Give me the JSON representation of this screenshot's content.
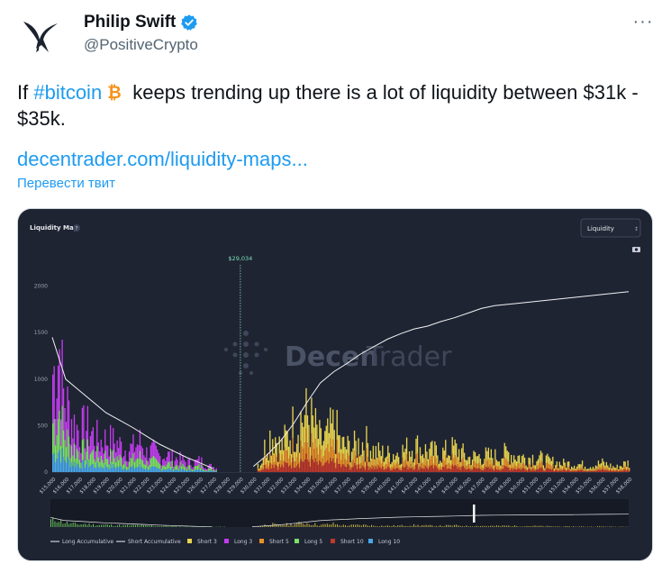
{
  "author": {
    "display_name": "Philip Swift",
    "handle": "@PositiveCrypto",
    "verified_color": "#1d9bf0",
    "avatar_icon": "swallow-bird-icon"
  },
  "more_icon": "ellipsis-icon",
  "more_label": "···",
  "tweet": {
    "text_prefix": "If ",
    "hashtag": "#bitcoin",
    "emoji_icon": "bitcoin-emoji-icon",
    "text_suffix": " keeps trending up there is a lot of liquidity between $31k - $35k.",
    "link_text": "decentrader.com/liquidity-maps...",
    "translate_label": "Перевести твит"
  },
  "colors": {
    "link": "#1d9bf0",
    "chart_bg": "#1f2433",
    "short3": "#e8d44d",
    "long3": "#c43cf0",
    "short5": "#e8902a",
    "long5": "#7ee06a",
    "short10": "#c0392b",
    "long10": "#4aa8e8"
  },
  "chart_panel": {
    "title": "Liquidity Map",
    "help_label": "?",
    "dropdown_value": "Liquidity",
    "camera_icon": "camera-icon",
    "current_price_label": "$29,034",
    "watermark_text_a": "Decen",
    "watermark_text_b": "Trader"
  },
  "chart_data": {
    "type": "bar",
    "title": "Liquidity Map",
    "ylim": [
      0,
      2200
    ],
    "yticks": [
      0,
      500,
      1000,
      1500,
      2000
    ],
    "xticks": [
      "$15,000",
      "$16,000",
      "$17,000",
      "$18,000",
      "$19,000",
      "$20,000",
      "$21,000",
      "$22,000",
      "$23,000",
      "$24,000",
      "$25,000",
      "$26,000",
      "$27,000",
      "$28,000",
      "$29,000",
      "$30,000",
      "$31,000",
      "$32,000",
      "$33,000",
      "$34,000",
      "$35,000",
      "$36,000",
      "$37,000",
      "$38,000",
      "$39,000",
      "$40,000",
      "$41,000",
      "$42,000",
      "$43,000",
      "$44,000",
      "$45,000",
      "$46,000",
      "$47,000",
      "$48,000",
      "$49,000",
      "$50,000",
      "$51,000",
      "$52,000",
      "$53,000",
      "$54,000",
      "$55,000",
      "$56,000",
      "$57,000",
      "$58,000"
    ],
    "xrange": [
      15000,
      58000
    ],
    "current_price": 29034,
    "legend": [
      "Long Accumulative",
      "Short Accumulative",
      "Short 3",
      "Long 3",
      "Short 5",
      "Long 5",
      "Short 10",
      "Long 10"
    ],
    "legend_placement": "bottom",
    "series": [
      {
        "name": "Long 3 (peak envelope)",
        "x": [
          15200,
          15500,
          15800,
          16100,
          16500,
          17000,
          17500,
          18000,
          18500,
          19000,
          19500,
          20000,
          20500,
          21000,
          21500,
          22000,
          22500,
          23000,
          23500,
          24000,
          24500,
          25000,
          25500,
          26000,
          26500,
          27000
        ],
        "values": [
          1700,
          2100,
          1300,
          1100,
          850,
          700,
          760,
          640,
          520,
          560,
          520,
          460,
          380,
          420,
          520,
          330,
          360,
          260,
          300,
          240,
          220,
          170,
          160,
          200,
          110,
          90
        ]
      },
      {
        "name": "Short 3 (peak envelope)",
        "x": [
          30500,
          31000,
          31500,
          32000,
          32500,
          33000,
          33500,
          34000,
          34500,
          35000,
          35500,
          36000,
          36500,
          37000,
          37500,
          38000,
          38500,
          39000,
          40000,
          41000,
          42000,
          43000,
          44000,
          45000,
          46000,
          47000,
          48000,
          49000,
          50000,
          51000,
          52000,
          53000,
          54000,
          55000,
          56000,
          57000,
          57800
        ],
        "values": [
          150,
          600,
          700,
          420,
          620,
          820,
          960,
          980,
          800,
          520,
          620,
          820,
          480,
          430,
          450,
          520,
          510,
          360,
          310,
          360,
          470,
          360,
          330,
          420,
          250,
          290,
          270,
          340,
          260,
          270,
          190,
          150,
          150,
          110,
          160,
          80,
          160
        ]
      },
      {
        "name": "Long Accumulative",
        "x": [
          15000,
          16000,
          17000,
          18000,
          19000,
          20000,
          21000,
          22000,
          23000,
          24000,
          25000,
          26000,
          27000
        ],
        "values": [
          1450,
          1000,
          880,
          760,
          640,
          560,
          480,
          390,
          300,
          230,
          160,
          100,
          40
        ]
      },
      {
        "name": "Short Accumulative",
        "x": [
          30000,
          31000,
          32000,
          33000,
          34000,
          35000,
          36000,
          37000,
          38000,
          39000,
          40000,
          41000,
          42000,
          43000,
          44000,
          45000,
          46000,
          47000,
          48000,
          50000,
          52000,
          54000,
          56000,
          58000
        ],
        "values": [
          60,
          180,
          330,
          520,
          750,
          960,
          1080,
          1170,
          1270,
          1350,
          1430,
          1490,
          1540,
          1570,
          1620,
          1660,
          1710,
          1760,
          1790,
          1820,
          1850,
          1880,
          1910,
          1940
        ]
      }
    ]
  }
}
